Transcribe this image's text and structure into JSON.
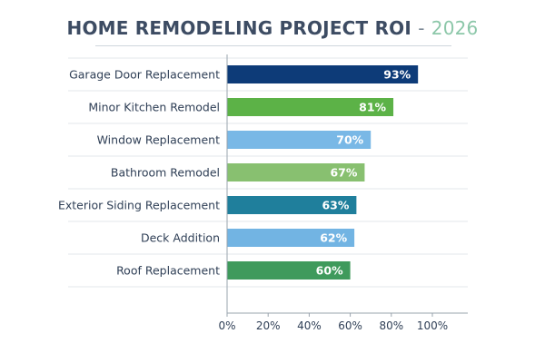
{
  "title": {
    "main": "HOME REMODELING PROJECT ROI",
    "separator": "-",
    "year": "2026"
  },
  "chart_data": {
    "type": "bar",
    "orientation": "horizontal",
    "title": "HOME REMODELING PROJECT ROI - 2026",
    "xlabel": "",
    "ylabel": "",
    "xlim": [
      0,
      100
    ],
    "x_ticks": [
      "0%",
      "20%",
      "40%",
      "60%",
      "80%",
      "100%"
    ],
    "tick_values": [
      0,
      20,
      40,
      60,
      80,
      100
    ],
    "grid": "horizontal row separators",
    "categories": [
      "Garage Door Replacement",
      "Minor Kitchen Remodel",
      "Window Replacement",
      "Bathroom Remodel",
      "Exterior Siding Replacement",
      "Deck Addition",
      "Roof Replacement"
    ],
    "values": [
      93,
      81,
      70,
      67,
      63,
      62,
      60
    ],
    "value_labels": [
      "93%",
      "81%",
      "70%",
      "67%",
      "63%",
      "62%",
      "60%"
    ],
    "bar_colors": [
      "#0d3b78",
      "#5cb247",
      "#79b8e6",
      "#88c070",
      "#1f7f9c",
      "#72b4e3",
      "#3f9a5c"
    ]
  }
}
